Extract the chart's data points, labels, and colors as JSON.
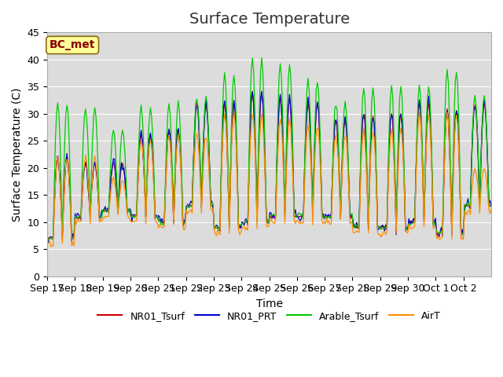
{
  "title": "Surface Temperature",
  "ylabel": "Surface Temperature (C)",
  "xlabel": "Time",
  "ylim": [
    0,
    45
  ],
  "annotation": "BC_met",
  "annotation_color": "#8B0000",
  "annotation_bg": "#FFFF99",
  "tick_labels": [
    "Sep 17",
    "Sep 18",
    "Sep 19",
    "Sep 20",
    "Sep 21",
    "Sep 22",
    "Sep 23",
    "Sep 24",
    "Sep 25",
    "Sep 26",
    "Sep 27",
    "Sep 28",
    "Sep 29",
    "Sep 30",
    "Oct 1",
    "Oct 2"
  ],
  "series_colors": [
    "#CC0000",
    "#0000CC",
    "#00CC00",
    "#FF8C00"
  ],
  "series_names": [
    "NR01_Tsurf",
    "NR01_PRT",
    "Arable_Tsurf",
    "AirT"
  ],
  "plot_bg": "#DCDCDC",
  "title_fontsize": 14,
  "label_fontsize": 10,
  "tick_fontsize": 9
}
